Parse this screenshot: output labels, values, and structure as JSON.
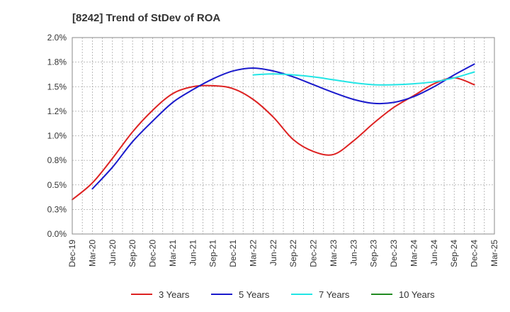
{
  "chart_data": {
    "type": "line",
    "title": "[8242]  Trend of StDev of ROA",
    "xlabel": "",
    "ylabel": "",
    "x_ticks": [
      "Dec-19",
      "Mar-20",
      "Jun-20",
      "Sep-20",
      "Dec-20",
      "Mar-21",
      "Jun-21",
      "Sep-21",
      "Dec-21",
      "Mar-22",
      "Jun-22",
      "Sep-22",
      "Dec-22",
      "Mar-23",
      "Jun-23",
      "Sep-23",
      "Dec-23",
      "Mar-24",
      "Jun-24",
      "Sep-24",
      "Dec-24",
      "Mar-25"
    ],
    "y_ticks": [
      "0.0%",
      "0.3%",
      "0.5%",
      "0.8%",
      "1.0%",
      "1.2%",
      "1.5%",
      "1.8%",
      "2.0%"
    ],
    "ylim": [
      0,
      2.0
    ],
    "grid": true,
    "legend_position": "bottom",
    "series": [
      {
        "name": "3 Years",
        "color": "#dd2222",
        "x": [
          "Dec-19",
          "Mar-20",
          "Jun-20",
          "Sep-20",
          "Dec-20",
          "Mar-21",
          "Jun-21",
          "Sep-21",
          "Dec-21",
          "Mar-22",
          "Jun-22",
          "Sep-22",
          "Dec-22",
          "Mar-23",
          "Jun-23",
          "Sep-23",
          "Dec-23",
          "Mar-24",
          "Jun-24",
          "Sep-24",
          "Dec-24"
        ],
        "values": [
          0.35,
          0.52,
          0.77,
          1.04,
          1.26,
          1.43,
          1.5,
          1.51,
          1.48,
          1.37,
          1.19,
          0.96,
          0.84,
          0.81,
          0.95,
          1.13,
          1.29,
          1.41,
          1.53,
          1.59,
          1.52
        ]
      },
      {
        "name": "5 Years",
        "color": "#1a1acc",
        "x": [
          "Mar-20",
          "Jun-20",
          "Sep-20",
          "Dec-20",
          "Mar-21",
          "Jun-21",
          "Sep-21",
          "Dec-21",
          "Mar-22",
          "Jun-22",
          "Sep-22",
          "Dec-22",
          "Mar-23",
          "Jun-23",
          "Sep-23",
          "Dec-23",
          "Mar-24",
          "Jun-24",
          "Sep-24",
          "Dec-24"
        ],
        "values": [
          0.46,
          0.68,
          0.94,
          1.15,
          1.34,
          1.47,
          1.58,
          1.66,
          1.69,
          1.66,
          1.6,
          1.52,
          1.44,
          1.37,
          1.33,
          1.34,
          1.4,
          1.5,
          1.62,
          1.73
        ]
      },
      {
        "name": "7 Years",
        "color": "#22e5e5",
        "x": [
          "Mar-22",
          "Jun-22",
          "Sep-22",
          "Dec-22",
          "Mar-23",
          "Jun-23",
          "Sep-23",
          "Dec-23",
          "Mar-24",
          "Jun-24",
          "Sep-24",
          "Dec-24"
        ],
        "values": [
          1.62,
          1.63,
          1.62,
          1.6,
          1.57,
          1.54,
          1.52,
          1.52,
          1.53,
          1.55,
          1.59,
          1.65
        ]
      },
      {
        "name": "10 Years",
        "color": "#228b22",
        "x": [],
        "values": []
      }
    ]
  }
}
